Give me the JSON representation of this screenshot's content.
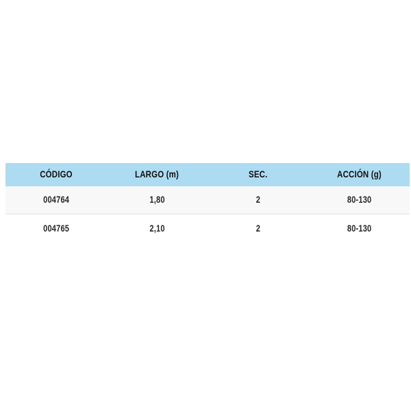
{
  "table": {
    "columns": [
      {
        "label": "CÓDIGO"
      },
      {
        "label": "LARGO (m)"
      },
      {
        "label": "SEC."
      },
      {
        "label": "ACCIÓN (g)"
      }
    ],
    "rows": [
      {
        "cells": [
          "004764",
          "1,80",
          "2",
          "80-130"
        ]
      },
      {
        "cells": [
          "004765",
          "2,10",
          "2",
          "80-130"
        ]
      }
    ],
    "colors": {
      "header_bg": "#addcf2",
      "header_text": "#111111",
      "row1_bg": "#f8f8f8",
      "row2_bg": "#ffffff",
      "separator": "#e2e2e2",
      "cell_text": "#262626",
      "page_bg": "#ffffff"
    }
  }
}
